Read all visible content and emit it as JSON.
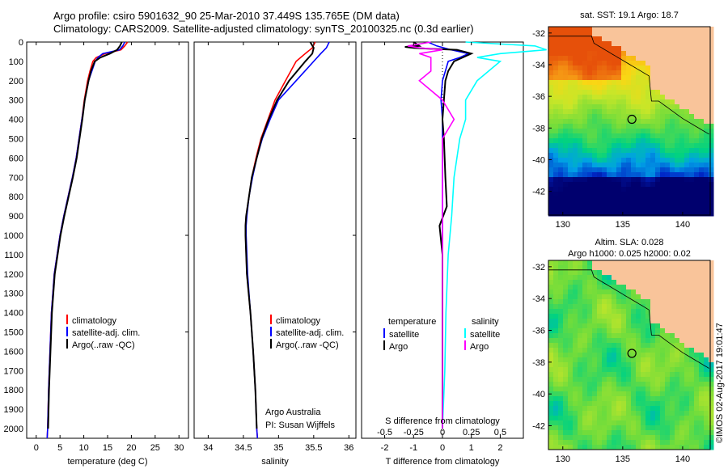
{
  "title": {
    "line1": "Argo profile: csiro 5901632_90 25-Mar-2010 37.449S 135.765E (DM data)",
    "line2": "Climatology: CARS2009. Satellite-adjusted climatology: synTS_20100325.nc (0.3d earlier)"
  },
  "colors": {
    "climatology": "#ff0000",
    "satellite": "#0000ff",
    "argo": "#000000",
    "sat_salinity": "#00ffff",
    "argo_salinity": "#ff00ff",
    "land": "#f9c49a"
  },
  "chart_data": [
    {
      "type": "line",
      "xlabel": "temperature (deg C)",
      "xticks": [
        "0",
        "5",
        "10",
        "15",
        "20",
        "25",
        "30"
      ],
      "xlim": [
        -2,
        32
      ],
      "ylim": [
        2050,
        0
      ],
      "yticks": [
        "0",
        "100",
        "200",
        "300",
        "400",
        "500",
        "600",
        "700",
        "800",
        "900",
        "1000",
        "1100",
        "1200",
        "1300",
        "1400",
        "1500",
        "1600",
        "1700",
        "1800",
        "1900",
        "2000"
      ],
      "legend": [
        "climatology",
        "satellite-adj. clim.",
        "Argo(..raw -QC)"
      ],
      "series": [
        {
          "name": "climatology",
          "depth": [
            0,
            20,
            40,
            60,
            80,
            100,
            150,
            200,
            300,
            400,
            500,
            600,
            700,
            800,
            900,
            1000,
            1200,
            1400,
            1600,
            1800,
            2000,
            2050
          ],
          "values": [
            19.2,
            18.6,
            17.8,
            14.5,
            12.6,
            11.9,
            11.3,
            10.8,
            10.1,
            9.6,
            9.0,
            8.4,
            7.6,
            6.7,
            5.8,
            5.0,
            3.8,
            3.2,
            2.9,
            2.6,
            2.4,
            2.3
          ]
        },
        {
          "name": "satellite-adj. clim.",
          "depth": [
            0,
            20,
            40,
            60,
            80,
            100,
            150,
            200,
            300,
            400,
            500,
            600,
            700,
            800,
            900,
            1000,
            1200,
            1400,
            1600,
            1800,
            2000,
            2050
          ],
          "values": [
            18.6,
            18.2,
            17.5,
            14.0,
            13.0,
            12.4,
            11.7,
            11.0,
            10.2,
            9.6,
            9.0,
            8.4,
            7.6,
            6.7,
            5.8,
            5.0,
            3.8,
            3.2,
            2.9,
            2.6,
            2.4,
            2.3
          ]
        },
        {
          "name": "Argo(..raw -QC)",
          "depth": [
            0,
            20,
            40,
            60,
            80,
            100,
            150,
            200,
            300,
            400,
            500,
            600,
            700,
            800,
            900,
            1000,
            1200,
            1400,
            1600,
            1800,
            2000
          ],
          "values": [
            18.0,
            17.6,
            17.0,
            15.5,
            13.5,
            12.3,
            11.5,
            11.0,
            10.2,
            9.7,
            9.1,
            8.5,
            7.7,
            6.8,
            5.9,
            5.1,
            3.9,
            3.3,
            3.0,
            2.7,
            2.5
          ]
        }
      ]
    },
    {
      "type": "line",
      "xlabel": "salinity",
      "xticks": [
        "34",
        "34.5",
        "35",
        "35.5",
        "36"
      ],
      "xlim": [
        33.8,
        36.1
      ],
      "ylim": [
        2050,
        0
      ],
      "legend": [
        "climatology",
        "satellite-adj. clim.",
        "Argo(..raw -QC)"
      ],
      "annotation": [
        "Argo Australia",
        "PI: Susan Wijffels"
      ],
      "series": [
        {
          "name": "climatology",
          "depth": [
            0,
            30,
            60,
            100,
            200,
            300,
            400,
            500,
            600,
            700,
            800,
            900,
            950,
            1000,
            1200,
            1400,
            1600,
            1800,
            2000,
            2050
          ],
          "values": [
            35.52,
            35.48,
            35.38,
            35.25,
            35.1,
            34.95,
            34.85,
            34.75,
            34.68,
            34.62,
            34.58,
            34.54,
            34.53,
            34.53,
            34.55,
            34.6,
            34.64,
            34.67,
            34.69,
            34.7
          ]
        },
        {
          "name": "satellite-adj. clim.",
          "depth": [
            0,
            30,
            60,
            100,
            200,
            300,
            400,
            500,
            600,
            700,
            800,
            900,
            950,
            1000,
            1200,
            1400,
            1600,
            1800,
            2000,
            2050
          ],
          "values": [
            35.72,
            35.68,
            35.6,
            35.5,
            35.25,
            35.0,
            34.88,
            34.77,
            34.69,
            34.63,
            34.58,
            34.55,
            34.54,
            34.54,
            34.56,
            34.6,
            34.64,
            34.67,
            34.69,
            34.7
          ]
        },
        {
          "name": "Argo(..raw -QC)",
          "depth": [
            0,
            30,
            60,
            100,
            200,
            300,
            400,
            500,
            600,
            700,
            800,
            900,
            950,
            1000,
            1200,
            1400,
            1600,
            1800,
            2000
          ],
          "values": [
            35.45,
            35.5,
            35.48,
            35.38,
            35.15,
            34.98,
            34.86,
            34.76,
            34.69,
            34.62,
            34.58,
            34.54,
            34.53,
            34.53,
            34.55,
            34.6,
            34.64,
            34.67,
            34.69
          ]
        }
      ]
    },
    {
      "type": "line",
      "xlabel": "T difference from climatology",
      "xlabel_top": "S difference from climatology",
      "xticks": [
        "-2",
        "-1",
        "0",
        "1",
        "2"
      ],
      "xticks_top": [
        "-0.5",
        "-0.25",
        "0",
        "0.25",
        "0.5"
      ],
      "xlim": [
        -2.8,
        2.8
      ],
      "ylim": [
        2050,
        0
      ],
      "legend_temperature": "temperature",
      "legend_salinity": "salinity",
      "legend_items": [
        "satellite",
        "Argo",
        "satellite",
        "Argo"
      ],
      "series": [
        {
          "name": "satellite",
          "depth": [
            0,
            20,
            40,
            60,
            80,
            100,
            150,
            200,
            300,
            400,
            500,
            700,
            900,
            1100,
            1400,
            1700,
            2000
          ],
          "values": [
            -0.5,
            -0.2,
            0.3,
            0.9,
            0.6,
            0.2,
            0.1,
            0.0,
            -0.05,
            0.0,
            0.0,
            0.0,
            0.0,
            0.0,
            0.0,
            0.0,
            0.0
          ]
        },
        {
          "name": "Argo",
          "depth": [
            0,
            20,
            25,
            30,
            35,
            40,
            60,
            80,
            100,
            150,
            200,
            300,
            400,
            500,
            700,
            850,
            950,
            1100,
            1400,
            1700,
            2000
          ],
          "values": [
            -1.0,
            -0.8,
            -1.3,
            -1.0,
            -0.4,
            0.5,
            1.0,
            0.7,
            0.4,
            0.2,
            0.1,
            0.05,
            0.0,
            0.05,
            0.1,
            0.15,
            -0.1,
            0.0,
            0.0,
            0.0,
            0.0
          ]
        },
        {
          "name": "satellite",
          "depth": [
            0,
            20,
            40,
            60,
            80,
            100,
            150,
            200,
            300,
            400,
            500,
            700,
            900,
            1100,
            1400,
            1700,
            2000
          ],
          "values": [
            0.2,
            0.8,
            0.9,
            0.5,
            0.3,
            0.5,
            0.4,
            0.3,
            0.2,
            0.2,
            0.15,
            0.1,
            0.08,
            0.05,
            0.03,
            0.02,
            0.0
          ]
        },
        {
          "name": "Argo",
          "depth": [
            0,
            20,
            30,
            40,
            60,
            80,
            100,
            150,
            200,
            300,
            400,
            500,
            600,
            700,
            900,
            1100,
            1400,
            1700,
            2000
          ],
          "values": [
            -0.1,
            -0.3,
            -0.2,
            0.0,
            -0.2,
            -0.1,
            -0.1,
            -0.1,
            -0.2,
            0.0,
            0.1,
            0.0,
            0.0,
            0.0,
            0.0,
            0.0,
            0.0,
            0.0,
            0.0
          ]
        }
      ]
    },
    {
      "type": "heatmap",
      "title": "sat. SST: 19.1  Argo: 18.7",
      "xticks": [
        "130",
        "135",
        "140"
      ],
      "yticks": [
        "-32",
        "-34",
        "-36",
        "-38",
        "-40",
        "-42"
      ],
      "xlim": [
        128.8,
        142.3
      ],
      "ylim": [
        -43.5,
        -31.6
      ],
      "marker": {
        "lon": 135.765,
        "lat": -37.449
      }
    },
    {
      "type": "heatmap",
      "title": [
        "Altim. SLA: 0.028",
        "Argo h1000: 0.025 h2000: 0.02"
      ],
      "xticks": [
        "130",
        "135",
        "140"
      ],
      "yticks": [
        "-32",
        "-34",
        "-36",
        "-38",
        "-40",
        "-42"
      ],
      "xlim": [
        128.8,
        142.3
      ],
      "ylim": [
        -43.5,
        -31.6
      ],
      "marker": {
        "lon": 135.765,
        "lat": -37.449
      }
    }
  ],
  "credit": "©IMOS 02-Aug-2017 19:01:47"
}
